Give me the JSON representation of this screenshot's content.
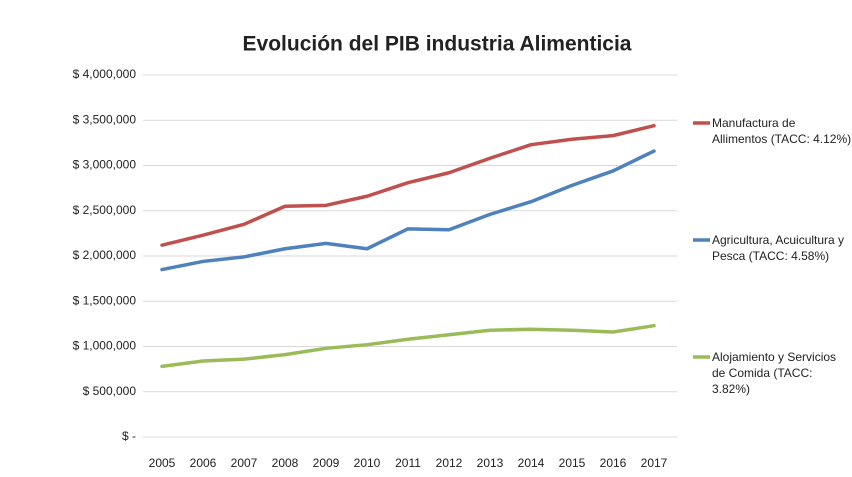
{
  "chart_data": {
    "type": "line",
    "title": "Evolución del PIB industria Alimenticia",
    "categories": [
      "2005",
      "2006",
      "2007",
      "2008",
      "2009",
      "2010",
      "2011",
      "2012",
      "2013",
      "2014",
      "2015",
      "2016",
      "2017"
    ],
    "series": [
      {
        "name": "Manufactura de Allimentos (TACC: 4.12%)",
        "color": "#c0504d",
        "values": [
          2120000,
          2230000,
          2350000,
          2550000,
          2560000,
          2660000,
          2810000,
          2920000,
          3080000,
          3230000,
          3290000,
          3330000,
          3440000
        ]
      },
      {
        "name": "Agricultura, Acuicultura y Pesca (TACC: 4.58%)",
        "color": "#4f81bd",
        "values": [
          1850000,
          1940000,
          1990000,
          2080000,
          2140000,
          2080000,
          2300000,
          2290000,
          2460000,
          2600000,
          2780000,
          2940000,
          3160000
        ]
      },
      {
        "name": "Alojamiento y Servicios de Comida (TACC: 3.82%)",
        "color": "#9bbb59",
        "values": [
          780000,
          840000,
          860000,
          910000,
          980000,
          1020000,
          1080000,
          1130000,
          1180000,
          1190000,
          1180000,
          1160000,
          1230000
        ]
      }
    ],
    "ylim": [
      0,
      4000000
    ],
    "yticks": [
      {
        "value": 0,
        "label": "$ -"
      },
      {
        "value": 500000,
        "label": "$ 500,000"
      },
      {
        "value": 1000000,
        "label": "$ 1,000,000"
      },
      {
        "value": 1500000,
        "label": "$ 1,500,000"
      },
      {
        "value": 2000000,
        "label": "$ 2,000,000"
      },
      {
        "value": 2500000,
        "label": "$ 2,500,000"
      },
      {
        "value": 3000000,
        "label": "$ 3,000,000"
      },
      {
        "value": 3500000,
        "label": "$ 3,500,000"
      },
      {
        "value": 4000000,
        "label": "$ 4,000,000"
      }
    ],
    "grid": true,
    "legend": "right"
  }
}
